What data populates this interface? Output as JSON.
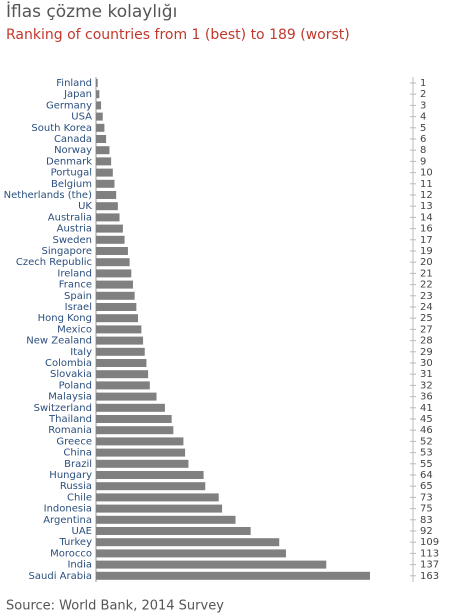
{
  "chart_data": {
    "type": "barh",
    "title": "İflas çözme kolaylığı",
    "subtitle": "Ranking of countries from 1 (best) to 189 (worst)",
    "source": "Source: World Bank, 2014 Survey",
    "color": "#808080",
    "categories": [
      "Finland",
      "Japan",
      "Germany",
      "USA",
      "South Korea",
      "Canada",
      "Norway",
      "Denmark",
      "Portugal",
      "Belgium",
      "Netherlands (the)",
      "UK",
      "Australia",
      "Austria",
      "Sweden",
      "Singapore",
      "Czech Republic",
      "Ireland",
      "France",
      "Spain",
      "Israel",
      "Hong Kong",
      "Mexico",
      "New Zealand",
      "Italy",
      "Colombia",
      "Slovakia",
      "Poland",
      "Malaysia",
      "Switzerland",
      "Thailand",
      "Romania",
      "Greece",
      "China",
      "Brazil",
      "Hungary",
      "Russia",
      "Chile",
      "Indonesia",
      "Argentina",
      "UAE",
      "Turkey",
      "Morocco",
      "India",
      "Saudi Arabia"
    ],
    "values": [
      1,
      2,
      3,
      4,
      5,
      6,
      8,
      9,
      10,
      11,
      12,
      13,
      14,
      16,
      17,
      19,
      20,
      21,
      22,
      23,
      24,
      25,
      27,
      28,
      29,
      30,
      31,
      32,
      36,
      41,
      45,
      46,
      52,
      53,
      55,
      64,
      65,
      73,
      75,
      83,
      92,
      109,
      113,
      137,
      163
    ]
  }
}
